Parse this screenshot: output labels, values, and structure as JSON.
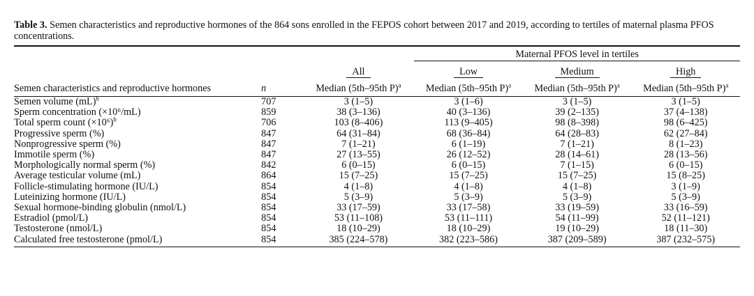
{
  "caption": {
    "label": "Table 3.",
    "text": " Semen characteristics and reproductive hormones of the 864 sons enrolled in the FEPOS cohort between 2017 and 2019, according to tertiles of maternal plasma PFOS concentrations."
  },
  "header": {
    "group_label": "Maternal PFOS level in tertiles",
    "col_all": "All",
    "col_low": "Low",
    "col_medium": "Medium",
    "col_high": "High",
    "row_header": "Semen characteristics and reproductive hormones",
    "n_header": "n",
    "median_label": "Median (5th–95th P)",
    "median_sup": "a"
  },
  "rows": [
    {
      "label": "Semen volume (mL)",
      "sup": "b",
      "n": "707",
      "all": "3 (1–5)",
      "low": "3 (1–6)",
      "medium": "3 (1–5)",
      "high": "3 (1–5)"
    },
    {
      "label": "Sperm concentration (×10⁶/mL)",
      "sup": "",
      "n": "859",
      "all": "38 (3–136)",
      "low": "40 (3–136)",
      "medium": "39 (2–135)",
      "high": "37 (4–138)"
    },
    {
      "label": "Total sperm count (×10⁶)",
      "sup": "b",
      "n": "706",
      "all": "103 (8–406)",
      "low": "113 (9–405)",
      "medium": "98 (8–398)",
      "high": "98 (6–425)"
    },
    {
      "label": "Progressive sperm (%)",
      "sup": "",
      "n": "847",
      "all": "64 (31–84)",
      "low": "68 (36–84)",
      "medium": "64 (28–83)",
      "high": "62 (27–84)"
    },
    {
      "label": "Nonprogressive sperm (%)",
      "sup": "",
      "n": "847",
      "all": "7 (1–21)",
      "low": "6 (1–19)",
      "medium": "7 (1–21)",
      "high": "8 (1–23)"
    },
    {
      "label": "Immotile sperm (%)",
      "sup": "",
      "n": "847",
      "all": "27 (13–55)",
      "low": "26 (12–52)",
      "medium": "28 (14–61)",
      "high": "28 (13–56)"
    },
    {
      "label": "Morphologically normal sperm (%)",
      "sup": "",
      "n": "842",
      "all": "6 (0–15)",
      "low": "6 (0–15)",
      "medium": "7 (1–15)",
      "high": "6 (0–15)"
    },
    {
      "label": "Average testicular volume (mL)",
      "sup": "",
      "n": "864",
      "all": "15 (7–25)",
      "low": "15 (7–25)",
      "medium": "15 (7–25)",
      "high": "15 (8–25)"
    },
    {
      "label": "Follicle-stimulating hormone (IU/L)",
      "sup": "",
      "n": "854",
      "all": "4 (1–8)",
      "low": "4 (1–8)",
      "medium": "4 (1–8)",
      "high": "3 (1–9)"
    },
    {
      "label": "Luteinizing hormone (IU/L)",
      "sup": "",
      "n": "854",
      "all": "5 (3–9)",
      "low": "5 (3–9)",
      "medium": "5 (3–9)",
      "high": "5 (3–9)"
    },
    {
      "label": "Sexual hormone-binding globulin (nmol/L)",
      "sup": "",
      "n": "854",
      "all": "33 (17–59)",
      "low": "33 (17–58)",
      "medium": "33 (19–59)",
      "high": "33 (16–59)"
    },
    {
      "label": "Estradiol (pmol/L)",
      "sup": "",
      "n": "854",
      "all": "53 (11–108)",
      "low": "53 (11–111)",
      "medium": "54 (11–99)",
      "high": "52 (11–121)"
    },
    {
      "label": "Testosterone (nmol/L)",
      "sup": "",
      "n": "854",
      "all": "18 (10–29)",
      "low": "18 (10–29)",
      "medium": "19 (10–29)",
      "high": "18 (11–30)"
    },
    {
      "label": "Calculated free testosterone (pmol/L)",
      "sup": "",
      "n": "854",
      "all": "385 (224–578)",
      "low": "382 (223–586)",
      "medium": "387 (209–589)",
      "high": "387 (232–575)"
    }
  ]
}
